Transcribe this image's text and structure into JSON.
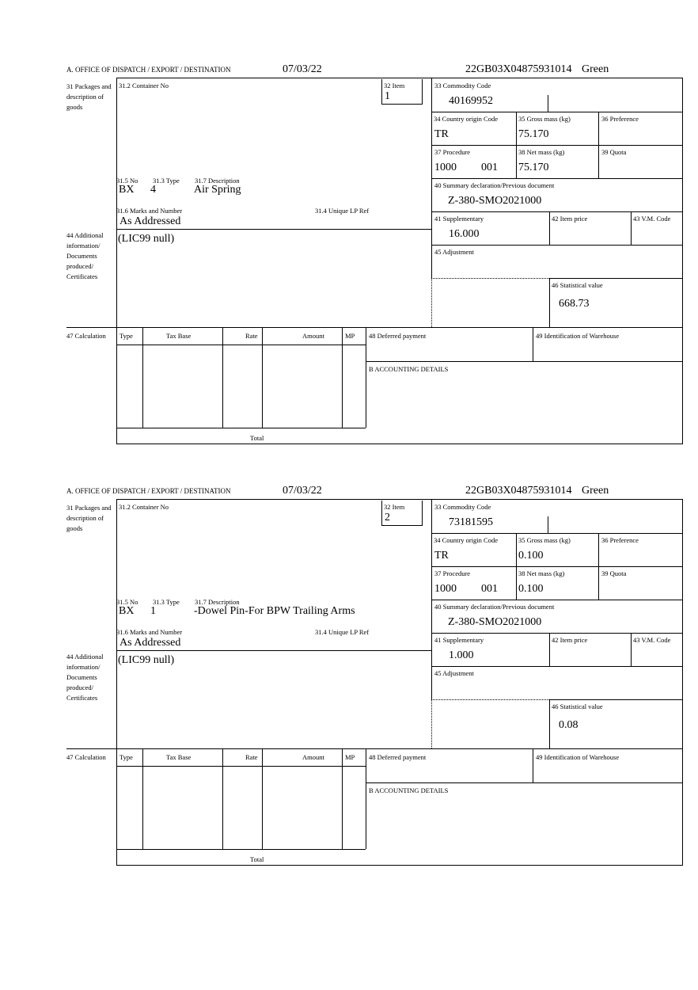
{
  "labels": {
    "office": "A.  OFFICE OF DISPATCH / EXPORT / DESTINATION",
    "packages": "31 Packages and description of goods",
    "container_no": "31.2 Container No",
    "item": "32 Item",
    "commodity_code": "33 Commodity Code",
    "country_origin": "34 Country origin Code",
    "gross_mass": "35 Gross mass (kg)",
    "preference": "36 Preference",
    "procedure": "37 Procedure",
    "net_mass": "38 Net mass (kg)",
    "quota": "39 Quota",
    "summary_declaration": "40 Summary declaration/Previous document",
    "supplementary": "41 Supplementary",
    "item_price": "42 Item price",
    "vm_code": "43 V.M. Code",
    "adjustment": "45 Adjustment",
    "statistical_value": "46 Statistical value",
    "no": "31.5 No",
    "type": "31.3 Type",
    "description": "31.7 Description",
    "marks": "31.6 Marks and Number",
    "unique_lp_ref": "31.4 Unique LP Ref",
    "additional_info": "44 Additional information/ Documents produced/ Certificates",
    "calculation": "47 Calculation",
    "calc_type": "Type",
    "calc_tax_base": "Tax Base",
    "calc_rate": "Rate",
    "calc_amount": "Amount",
    "calc_mp": "MP",
    "calc_total": "Total",
    "deferred_payment": "48 Deferred payment",
    "warehouse": "49 Identification of Warehouse",
    "accounting": "B ACCOUNTING DETAILS"
  },
  "items": [
    {
      "date": "07/03/22",
      "reference": "22GB03X04875931014",
      "route": "Green",
      "item_no": "1",
      "commodity_code": "40169952",
      "country_origin": "TR",
      "gross_mass": "75.170",
      "procedure_code": "1000",
      "procedure_suffix": "001",
      "net_mass": "75.170",
      "previous_document": "Z-380-SMO2021000",
      "no": "BX",
      "type": "4",
      "description": "Air Spring",
      "marks": "As Addressed",
      "additional_info": "(LIC99 null)",
      "supplementary": "16.000",
      "statistical_value": "668.73"
    },
    {
      "date": "07/03/22",
      "reference": "22GB03X04875931014",
      "route": "Green",
      "item_no": "2",
      "commodity_code": "73181595",
      "country_origin": "TR",
      "gross_mass": "0.100",
      "procedure_code": "1000",
      "procedure_suffix": "001",
      "net_mass": "0.100",
      "previous_document": "Z-380-SMO2021000",
      "no": "BX",
      "type": "1",
      "description": "-Dowel Pin-For BPW Trailing Arms",
      "marks": "As Addressed",
      "additional_info": "(LIC99 null)",
      "supplementary": "1.000",
      "statistical_value": "0.08"
    }
  ]
}
